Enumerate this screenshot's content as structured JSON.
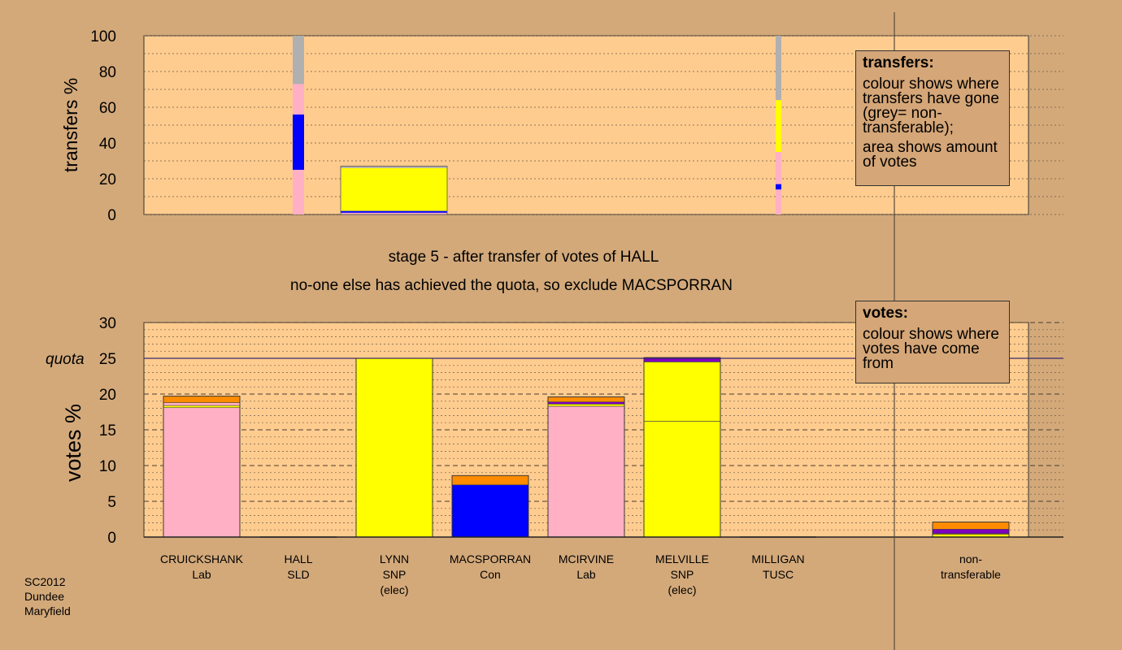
{
  "colors": {
    "background": "#d3a97a",
    "plot_background": "#ffcc8f",
    "Lab": "#ffb0c4",
    "SNP": "#ffff00",
    "Con": "#0000ff",
    "SLD": "#ff8c00",
    "TUSC": "#8000c0",
    "non_transferable": "#b0b0b0"
  },
  "stage": {
    "line1": "stage 5 - after transfer of votes of HALL",
    "line2": "no-one else has achieved the quota, so exclude MACSPORRAN"
  },
  "legend_transfers": {
    "title": "transfers:",
    "line1": "colour shows where transfers have gone (grey= non-transferable);",
    "line2": "area shows amount of votes"
  },
  "legend_votes": {
    "title": "votes:",
    "line1": "colour shows where votes have come from"
  },
  "candidates": [
    {
      "name": "CRUICKSHANK",
      "party": "Lab",
      "note": ""
    },
    {
      "name": "HALL",
      "party": "SLD",
      "note": ""
    },
    {
      "name": "LYNN",
      "party": "SNP",
      "note": "(elec)"
    },
    {
      "name": "MACSPORRAN",
      "party": "Con",
      "note": ""
    },
    {
      "name": "MCIRVINE",
      "party": "Lab",
      "note": ""
    },
    {
      "name": "MELVILLE",
      "party": "SNP",
      "note": "(elec)"
    },
    {
      "name": "MILLIGAN",
      "party": "TUSC",
      "note": ""
    },
    {
      "name": "non-",
      "party": "transferable",
      "note": ""
    }
  ],
  "footer": {
    "line1": "SC2012",
    "line2": "Dundee",
    "line3": "Maryfield"
  },
  "chart_data": [
    {
      "type": "bar",
      "ylabel": "transfers %",
      "ylim": [
        0,
        100
      ],
      "yticks": [
        0,
        20,
        40,
        60,
        80,
        100
      ],
      "bars": [
        {
          "candidate": "HALL",
          "segments": [
            {
              "party": "Lab",
              "from": 0,
              "to": 25
            },
            {
              "party": "Con",
              "from": 25,
              "to": 56
            },
            {
              "party": "Lab",
              "from": 56,
              "to": 73
            },
            {
              "party": "non_transferable",
              "from": 73,
              "to": 100
            }
          ]
        },
        {
          "candidate": "LYNN",
          "segments": [
            {
              "party": "Lab",
              "from": 0,
              "to": 1
            },
            {
              "party": "Con",
              "from": 1,
              "to": 2
            },
            {
              "party": "SNP",
              "from": 2,
              "to": 26
            },
            {
              "party": "non_transferable",
              "from": 26,
              "to": 27
            }
          ]
        },
        {
          "candidate": "MELVILLE",
          "segments": [
            {
              "party": "Lab",
              "from": 0,
              "to": 14
            },
            {
              "party": "Con",
              "from": 14,
              "to": 17
            },
            {
              "party": "Lab",
              "from": 17,
              "to": 35
            },
            {
              "party": "SNP",
              "from": 35,
              "to": 64
            },
            {
              "party": "non_transferable",
              "from": 64,
              "to": 100
            }
          ]
        }
      ]
    },
    {
      "type": "bar",
      "ylabel": "votes %",
      "ylim": [
        0,
        30
      ],
      "yticks": [
        0,
        5,
        10,
        15,
        20,
        25,
        30
      ],
      "quota": 25,
      "quota_label": "quota",
      "bars": [
        {
          "candidate": "CRUICKSHANK",
          "segments": [
            {
              "party": "Lab",
              "from": 0,
              "to": 18.1
            },
            {
              "party": "SNP",
              "from": 18.1,
              "to": 18.4
            },
            {
              "party": "Lab",
              "from": 18.4,
              "to": 18.8
            },
            {
              "party": "SLD",
              "from": 18.8,
              "to": 19.7
            }
          ]
        },
        {
          "candidate": "HALL",
          "segments": []
        },
        {
          "candidate": "LYNN",
          "segments": [
            {
              "party": "SNP",
              "from": 0,
              "to": 25
            }
          ]
        },
        {
          "candidate": "MACSPORRAN",
          "segments": [
            {
              "party": "Con",
              "from": 0,
              "to": 7.3
            },
            {
              "party": "SLD",
              "from": 7.3,
              "to": 8.6
            }
          ]
        },
        {
          "candidate": "MCIRVINE",
          "segments": [
            {
              "party": "Lab",
              "from": 0,
              "to": 18.3
            },
            {
              "party": "SNP",
              "from": 18.3,
              "to": 18.6
            },
            {
              "party": "TUSC",
              "from": 18.6,
              "to": 18.9
            },
            {
              "party": "SLD",
              "from": 18.9,
              "to": 19.6
            }
          ]
        },
        {
          "candidate": "MELVILLE",
          "segments": [
            {
              "party": "SNP",
              "from": 0,
              "to": 16.2
            },
            {
              "party": "SNP",
              "from": 16.2,
              "to": 24.5
            },
            {
              "party": "TUSC",
              "from": 24.5,
              "to": 25.1
            }
          ]
        },
        {
          "candidate": "MILLIGAN",
          "segments": []
        },
        {
          "candidate": "non-transferable",
          "segments": [
            {
              "party": "SNP",
              "from": 0,
              "to": 0.4
            },
            {
              "party": "SLD",
              "from": 0.4,
              "to": 0.5
            },
            {
              "party": "TUSC",
              "from": 0.5,
              "to": 1.1
            },
            {
              "party": "SLD",
              "from": 1.1,
              "to": 2.1
            }
          ]
        }
      ]
    }
  ]
}
